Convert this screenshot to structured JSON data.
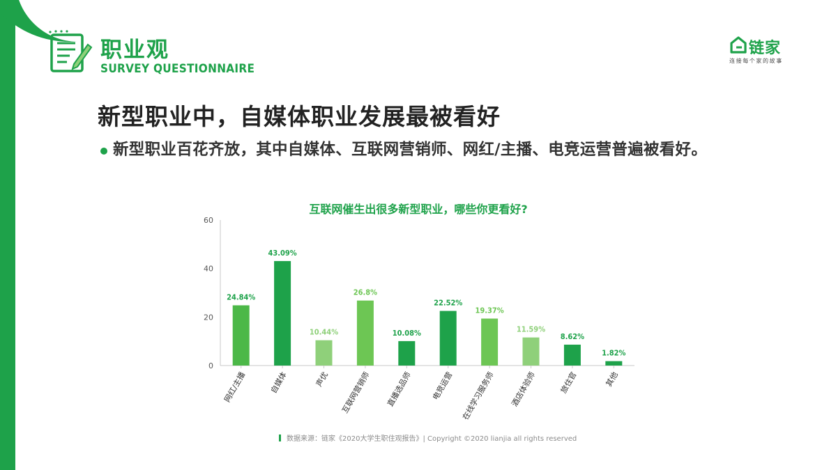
{
  "header": {
    "title": "职业观",
    "subtitle": "SURVEY QUESTIONNAIRE",
    "icon": "survey-clipboard-icon"
  },
  "brand": {
    "name": "链家",
    "slogan": "连接每个家的故事",
    "icon": "house-logo-icon",
    "color": "#1ea24a"
  },
  "main": {
    "title": "新型职业中，自媒体职业发展最被看好",
    "bullet": "新型职业百花齐放，其中自媒体、互联网营销师、网红/主播、电竞运营普遍被看好。"
  },
  "chart_data": {
    "type": "bar",
    "title": "互联网催生出很多新型职业，哪些你更看好?",
    "categories": [
      "网红/主播",
      "自媒体",
      "声优",
      "互联网营销师",
      "直播选品师",
      "电竞运营",
      "在线学习服务师",
      "酒店体验师",
      "旅住官",
      "其他"
    ],
    "values": [
      24.84,
      43.09,
      10.44,
      26.8,
      10.08,
      22.52,
      19.37,
      11.59,
      8.62,
      1.82
    ],
    "value_labels": [
      "24.84%",
      "43.09%",
      "10.44%",
      "26.8%",
      "10.08%",
      "22.52%",
      "19.37%",
      "11.59%",
      "8.62%",
      "1.82%"
    ],
    "colors": [
      "#4cb848",
      "#1ea24a",
      "#8fd07a",
      "#6dc654",
      "#1ea24a",
      "#1ea24a",
      "#6dc654",
      "#8fd07a",
      "#1ea24a",
      "#1ea24a"
    ],
    "label_colors": [
      "#1ea24a",
      "#1ea24a",
      "#8fd07a",
      "#6dc654",
      "#1ea24a",
      "#1ea24a",
      "#6dc654",
      "#8fd07a",
      "#1ea24a",
      "#1ea24a"
    ],
    "yticks": [
      0,
      20,
      40,
      60
    ],
    "ylim": [
      0,
      60
    ],
    "grid": false,
    "xlabel": "",
    "ylabel": ""
  },
  "footer": {
    "text": "数据来源：链家《2020大学生职住观报告》| Copyright ©2020 lianjia all rights reserved"
  }
}
